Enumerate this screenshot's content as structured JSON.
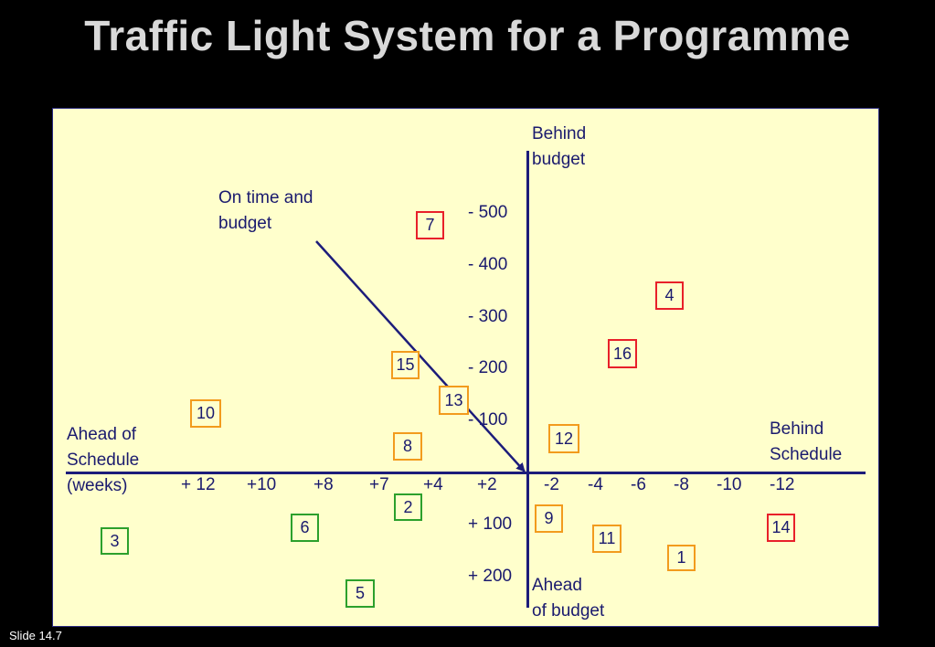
{
  "title": "Traffic Light System for a Programme",
  "footer": "Slide 14.7",
  "colors": {
    "red": "#e8202a",
    "amber": "#f29b1d",
    "green": "#2ca02c",
    "axis": "#1c1c7a"
  },
  "labels": {
    "behind_budget": [
      "Behind",
      "budget"
    ],
    "ahead_budget": [
      "Ahead",
      "of budget"
    ],
    "behind_schedule": [
      "Behind",
      "Schedule"
    ],
    "ahead_schedule": [
      "Ahead of",
      "Schedule",
      "(weeks)"
    ],
    "on_time": [
      "On time and",
      "budget"
    ]
  },
  "x_ticks": [
    "+ 12",
    "+10",
    "+8",
    "+7",
    "+4",
    "+2",
    "-2",
    "-4",
    "-6",
    "-8",
    "-10",
    "-12"
  ],
  "y_ticks": [
    "- 500",
    "- 400",
    "- 300",
    "- 200",
    "- 100",
    "+ 100",
    "+ 200"
  ],
  "projects": [
    {
      "id": "1",
      "status": "amber"
    },
    {
      "id": "2",
      "status": "green"
    },
    {
      "id": "3",
      "status": "green"
    },
    {
      "id": "4",
      "status": "red"
    },
    {
      "id": "5",
      "status": "green"
    },
    {
      "id": "6",
      "status": "green"
    },
    {
      "id": "7",
      "status": "red"
    },
    {
      "id": "8",
      "status": "amber"
    },
    {
      "id": "9",
      "status": "amber"
    },
    {
      "id": "10",
      "status": "amber"
    },
    {
      "id": "11",
      "status": "amber"
    },
    {
      "id": "12",
      "status": "amber"
    },
    {
      "id": "13",
      "status": "amber"
    },
    {
      "id": "14",
      "status": "red"
    },
    {
      "id": "15",
      "status": "amber"
    },
    {
      "id": "16",
      "status": "red"
    }
  ]
}
